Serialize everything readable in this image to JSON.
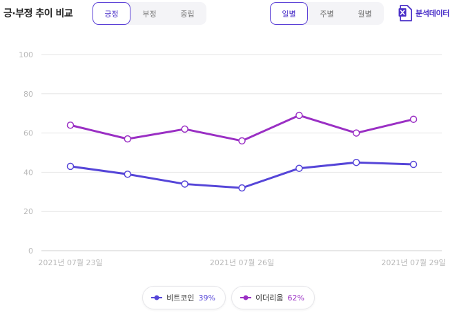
{
  "header": {
    "title": "긍·부정 추이 비교",
    "sentiment_tabs": [
      {
        "label": "긍정",
        "active": true
      },
      {
        "label": "부정",
        "active": false
      },
      {
        "label": "중립",
        "active": false
      }
    ],
    "period_tabs": [
      {
        "label": "일별",
        "active": true
      },
      {
        "label": "주별",
        "active": false
      },
      {
        "label": "월별",
        "active": false
      }
    ],
    "export_label": "분석데이터",
    "export_icon": "excel-icon"
  },
  "colors": {
    "accent": "#4a30c8",
    "bitcoin": "#5545d8",
    "ethereum": "#9a2fc4",
    "grid": "#e5e5e5"
  },
  "chart_data": {
    "type": "line",
    "x": [
      "2021-07-23",
      "2021-07-24",
      "2021-07-25",
      "2021-07-26",
      "2021-07-27",
      "2021-07-28",
      "2021-07-29"
    ],
    "x_tick_labels": [
      "2021년 07월 23일",
      "",
      "",
      "2021년 07월 26일",
      "",
      "",
      "2021년 07월 29일"
    ],
    "ylim": [
      0,
      100
    ],
    "y_ticks": [
      0,
      20,
      40,
      60,
      80,
      100
    ],
    "grid": true,
    "legend_position": "bottom-center",
    "series": [
      {
        "name": "비트코인",
        "percent": "39%",
        "color": "#5545d8",
        "values": [
          43,
          39,
          34,
          32,
          42,
          45,
          44
        ]
      },
      {
        "name": "이더리움",
        "percent": "62%",
        "color": "#9a2fc4",
        "values": [
          64,
          57,
          62,
          56,
          69,
          60,
          67
        ]
      }
    ]
  }
}
